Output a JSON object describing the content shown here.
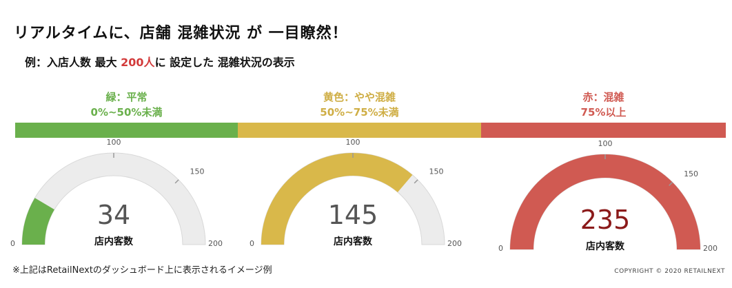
{
  "title": "リアルタイムに、店舗 混雑状況 が 一目瞭然！",
  "subtitle": {
    "prefix": "例：入店人数 最大 ",
    "highlight": "200人",
    "suffix": "に 設定した 混雑状況の表示"
  },
  "levels": [
    {
      "line1": "緑：平常",
      "line2": "0%~50%未満",
      "color": "#6ab04c"
    },
    {
      "line1": "黄色：やや混雑",
      "line2": "50%~75%未満",
      "color": "#d9b84a"
    },
    {
      "line1": "赤：混雑",
      "line2": "75%以上",
      "color": "#d05a52"
    }
  ],
  "gauge_max": 200,
  "gauges": [
    {
      "value": 34,
      "value_label": "34",
      "caption": "店内客数",
      "color": "#6ab04c",
      "value_color": "#555555",
      "ticks": [
        "0",
        "100",
        "150",
        "200"
      ]
    },
    {
      "value": 145,
      "value_label": "145",
      "caption": "店内客数",
      "color": "#d9b84a",
      "value_color": "#555555",
      "ticks": [
        "0",
        "100",
        "150",
        "200"
      ]
    },
    {
      "value": 235,
      "value_label": "235",
      "caption": "店内客数",
      "color": "#d05a52",
      "value_color": "#8b1a1a",
      "ticks": [
        "0",
        "100",
        "150",
        "200"
      ]
    }
  ],
  "track_color": "#ececec",
  "note": "※上記はRetailNextのダッシュボード上に表示されるイメージ例",
  "copyright": "COPYRIGHT © 2020 RETAILNEXT"
}
